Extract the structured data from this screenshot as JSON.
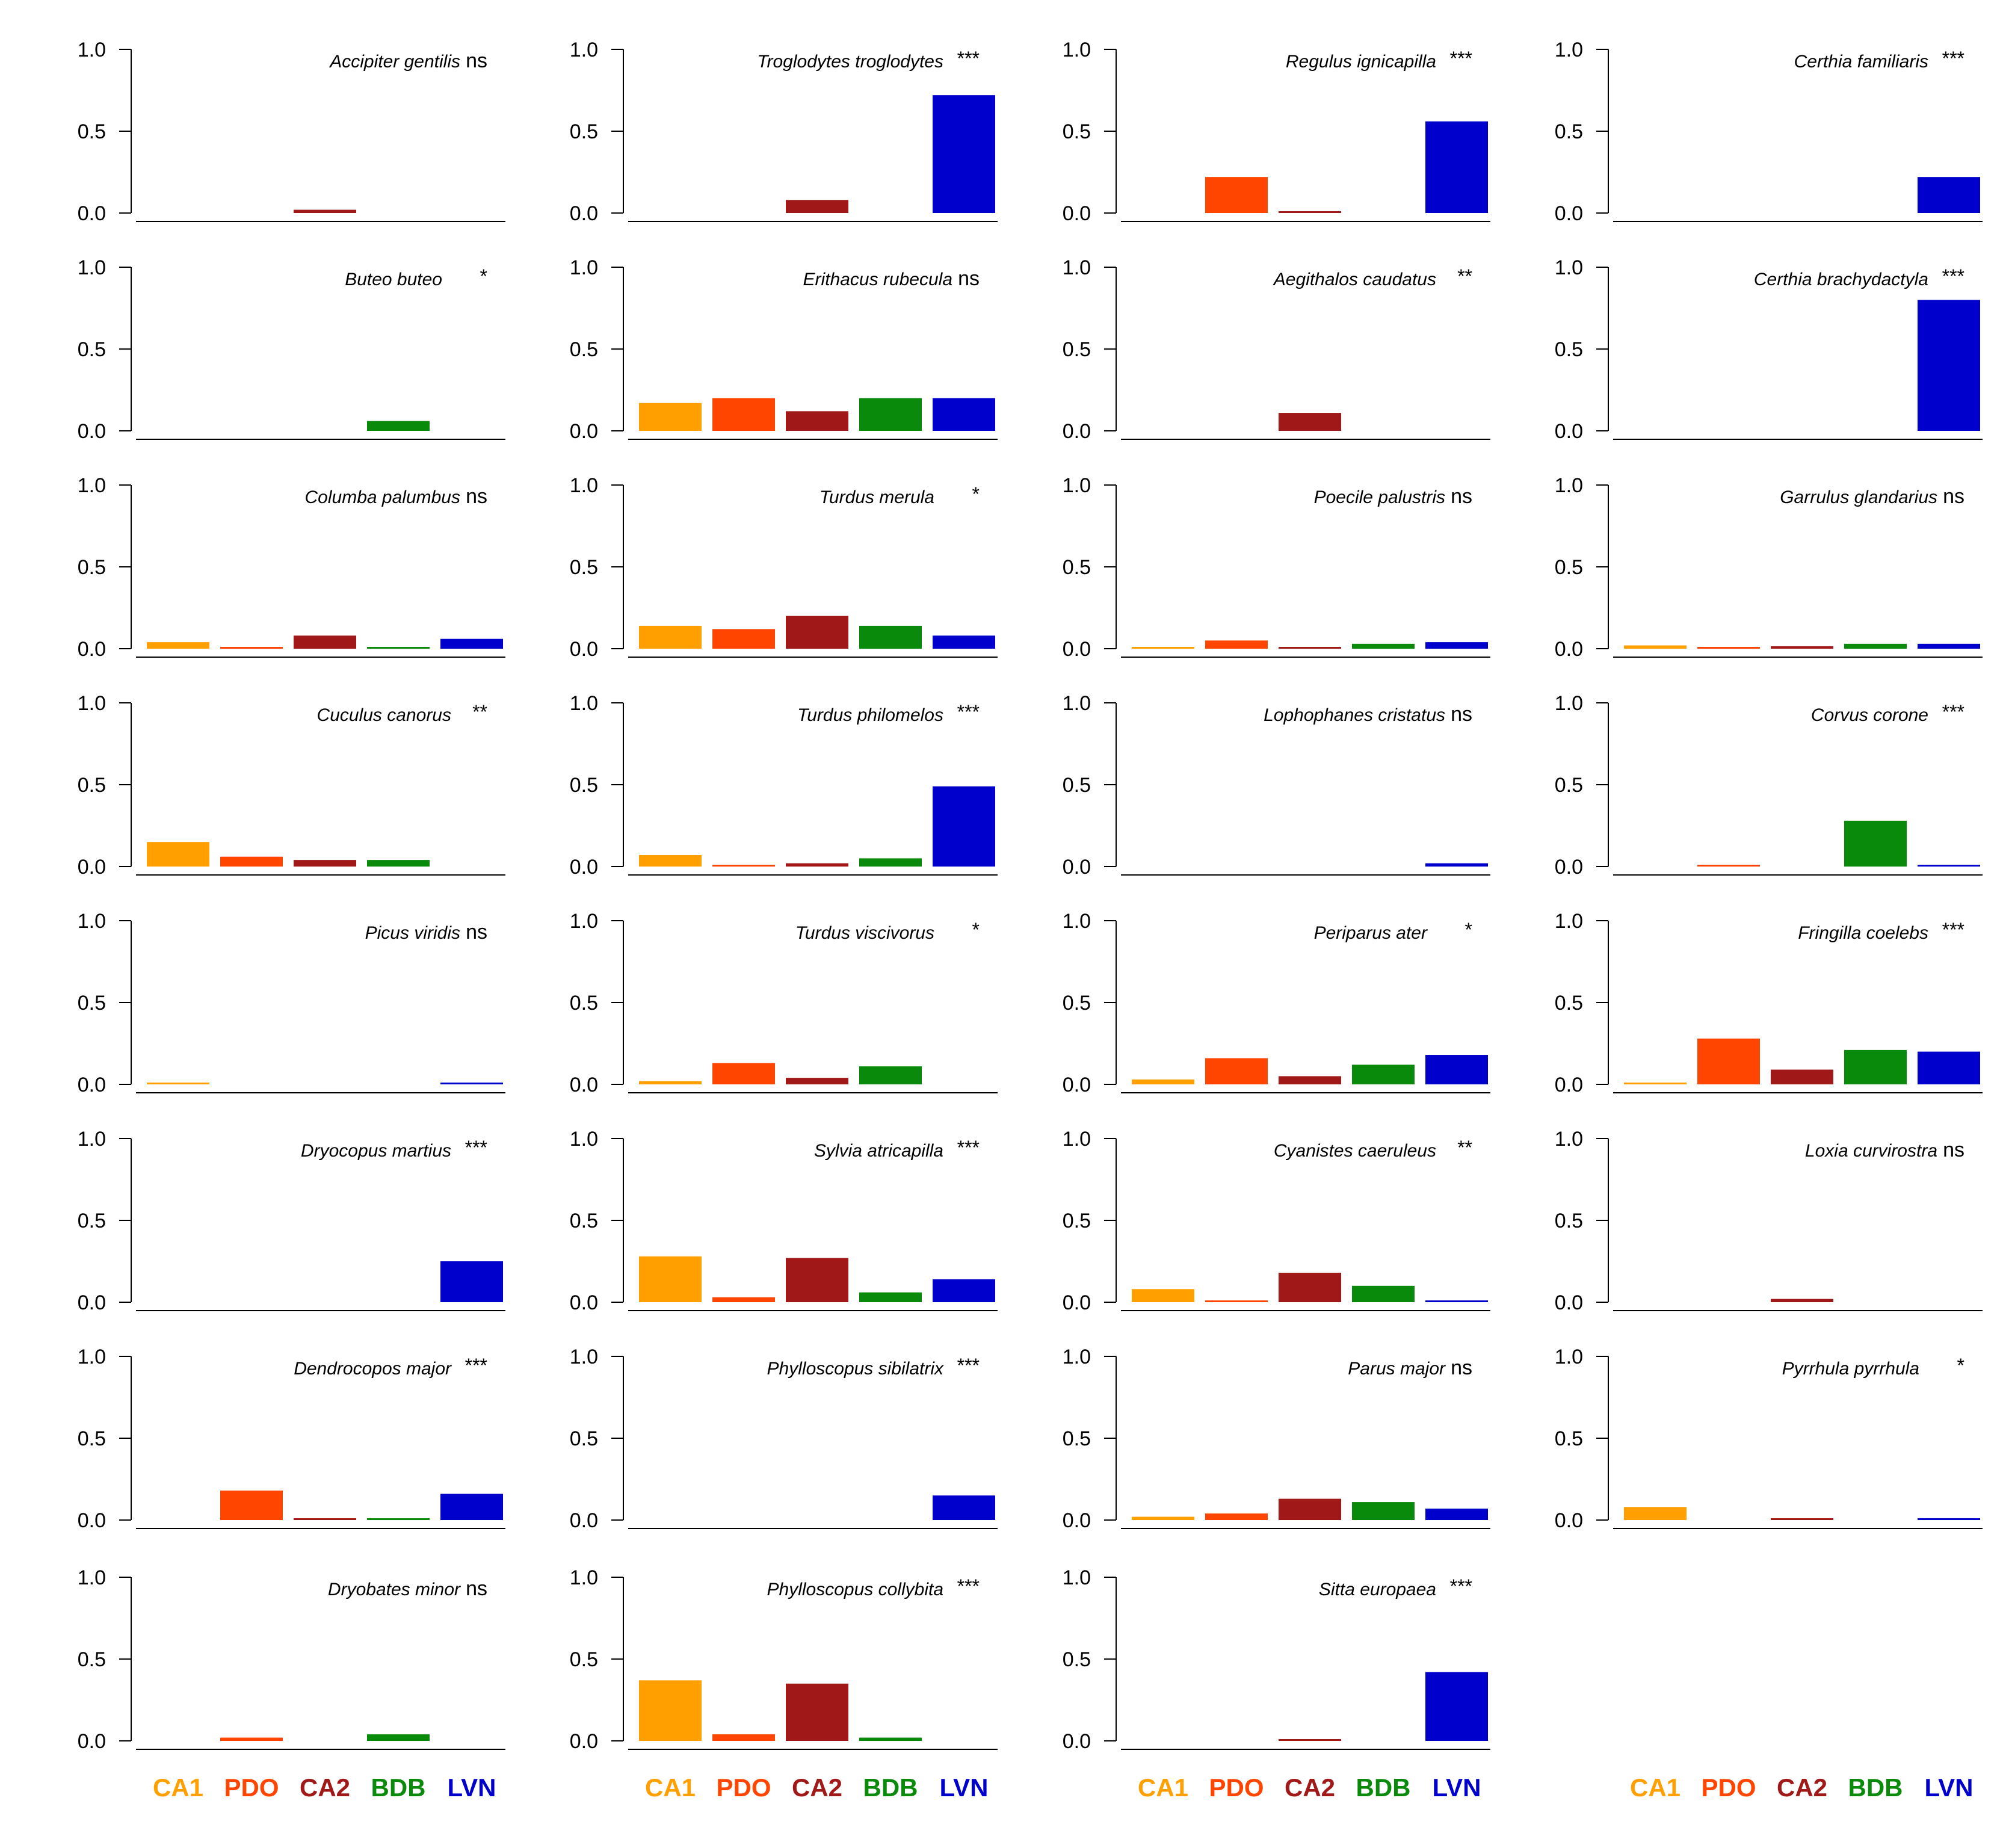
{
  "chart_data": {
    "type": "bar",
    "ylim": [
      0,
      1
    ],
    "yticks": [
      "1.0",
      "0.5",
      "0.0"
    ],
    "categories": [
      "CA1",
      "PDO",
      "CA2",
      "BDB",
      "LVN"
    ],
    "colors": {
      "CA1": "#FF9F00",
      "PDO": "#FF4500",
      "CA2": "#A01818",
      "BDB": "#0A8A0A",
      "LVN": "#0000CC"
    },
    "panels": [
      {
        "species": "Accipiter gentilis",
        "sig": "ns",
        "col": 0,
        "row": 0,
        "values": [
          0,
          0,
          0.02,
          0,
          0
        ]
      },
      {
        "species": "Buteo buteo",
        "sig": "*",
        "col": 0,
        "row": 1,
        "values": [
          0,
          0,
          0,
          0.06,
          0
        ]
      },
      {
        "species": "Columba palumbus",
        "sig": "ns",
        "col": 0,
        "row": 2,
        "values": [
          0.04,
          0.005,
          0.08,
          0.005,
          0.06
        ]
      },
      {
        "species": "Cuculus canorus",
        "sig": "**",
        "col": 0,
        "row": 3,
        "values": [
          0.15,
          0.06,
          0.04,
          0.04,
          0
        ]
      },
      {
        "species": "Picus viridis",
        "sig": "ns",
        "col": 0,
        "row": 4,
        "values": [
          0.01,
          0,
          0,
          0,
          0.01
        ]
      },
      {
        "species": "Dryocopus martius",
        "sig": "***",
        "col": 0,
        "row": 5,
        "values": [
          0,
          0,
          0,
          0,
          0.25
        ]
      },
      {
        "species": "Dendrocopos major",
        "sig": "***",
        "col": 0,
        "row": 6,
        "values": [
          0,
          0.18,
          0.005,
          0.005,
          0.16
        ]
      },
      {
        "species": "Dryobates minor",
        "sig": "ns",
        "col": 0,
        "row": 7,
        "values": [
          0,
          0.02,
          0,
          0.04,
          0
        ]
      },
      {
        "species": "Troglodytes troglodytes",
        "sig": "***",
        "col": 1,
        "row": 0,
        "values": [
          0,
          0,
          0.08,
          0,
          0.72
        ]
      },
      {
        "species": "Erithacus rubecula",
        "sig": "ns",
        "col": 1,
        "row": 1,
        "values": [
          0.17,
          0.2,
          0.12,
          0.2,
          0.2
        ]
      },
      {
        "species": "Turdus merula",
        "sig": "*",
        "col": 1,
        "row": 2,
        "values": [
          0.14,
          0.12,
          0.2,
          0.14,
          0.08
        ]
      },
      {
        "species": "Turdus philomelos",
        "sig": "***",
        "col": 1,
        "row": 3,
        "values": [
          0.07,
          0.01,
          0.02,
          0.05,
          0.49
        ]
      },
      {
        "species": "Turdus viscivorus",
        "sig": "*",
        "col": 1,
        "row": 4,
        "values": [
          0.02,
          0.13,
          0.04,
          0.11,
          0
        ]
      },
      {
        "species": "Sylvia atricapilla",
        "sig": "***",
        "col": 1,
        "row": 5,
        "values": [
          0.28,
          0.03,
          0.27,
          0.06,
          0.14
        ]
      },
      {
        "species": "Phylloscopus sibilatrix",
        "sig": "***",
        "col": 1,
        "row": 6,
        "values": [
          0,
          0,
          0,
          0,
          0.15
        ]
      },
      {
        "species": "Phylloscopus collybita",
        "sig": "***",
        "col": 1,
        "row": 7,
        "values": [
          0.37,
          0.04,
          0.35,
          0.02,
          0
        ]
      },
      {
        "species": "Regulus ignicapilla",
        "sig": "***",
        "col": 2,
        "row": 0,
        "values": [
          0,
          0.22,
          0.005,
          0,
          0.56
        ]
      },
      {
        "species": "Aegithalos caudatus",
        "sig": "**",
        "col": 2,
        "row": 1,
        "values": [
          0,
          0,
          0.11,
          0,
          0
        ]
      },
      {
        "species": "Poecile palustris",
        "sig": "ns",
        "col": 2,
        "row": 2,
        "values": [
          0.005,
          0.05,
          0.01,
          0.03,
          0.04
        ]
      },
      {
        "species": "Lophophanes cristatus",
        "sig": "ns",
        "col": 2,
        "row": 3,
        "values": [
          0,
          0,
          0,
          0,
          0.02
        ]
      },
      {
        "species": "Periparus ater",
        "sig": "*",
        "col": 2,
        "row": 4,
        "values": [
          0.03,
          0.16,
          0.05,
          0.12,
          0.18
        ]
      },
      {
        "species": "Cyanistes caeruleus",
        "sig": "**",
        "col": 2,
        "row": 5,
        "values": [
          0.08,
          0.005,
          0.18,
          0.1,
          0.01
        ]
      },
      {
        "species": "Parus major",
        "sig": "ns",
        "col": 2,
        "row": 6,
        "values": [
          0.02,
          0.04,
          0.13,
          0.11,
          0.07
        ]
      },
      {
        "species": "Sitta europaea",
        "sig": "***",
        "col": 2,
        "row": 7,
        "values": [
          0,
          0,
          0.01,
          0,
          0.42
        ]
      },
      {
        "species": "Certhia familiaris",
        "sig": "***",
        "col": 3,
        "row": 0,
        "values": [
          0,
          0,
          0,
          0,
          0.22
        ]
      },
      {
        "species": "Certhia brachydactyla",
        "sig": "***",
        "col": 3,
        "row": 1,
        "values": [
          0,
          0,
          0,
          0,
          0.8
        ]
      },
      {
        "species": "Garrulus glandarius",
        "sig": "ns",
        "col": 3,
        "row": 2,
        "values": [
          0.02,
          0.005,
          0.015,
          0.03,
          0.03
        ]
      },
      {
        "species": "Corvus corone",
        "sig": "***",
        "col": 3,
        "row": 3,
        "values": [
          0,
          0.005,
          0,
          0.28,
          0.005
        ]
      },
      {
        "species": "Fringilla coelebs",
        "sig": "***",
        "col": 3,
        "row": 4,
        "values": [
          0.01,
          0.28,
          0.09,
          0.21,
          0.2
        ]
      },
      {
        "species": "Loxia curvirostra",
        "sig": "ns",
        "col": 3,
        "row": 5,
        "values": [
          0,
          0,
          0.02,
          0,
          0
        ]
      },
      {
        "species": "Pyrrhula pyrrhula",
        "sig": "*",
        "col": 3,
        "row": 6,
        "values": [
          0.08,
          0,
          0.005,
          0,
          0.005
        ]
      }
    ],
    "legends": [
      {
        "col": 0,
        "row": 8
      },
      {
        "col": 1,
        "row": 8
      },
      {
        "col": 2,
        "row": 8
      },
      {
        "col": 3,
        "row": 7
      }
    ]
  }
}
